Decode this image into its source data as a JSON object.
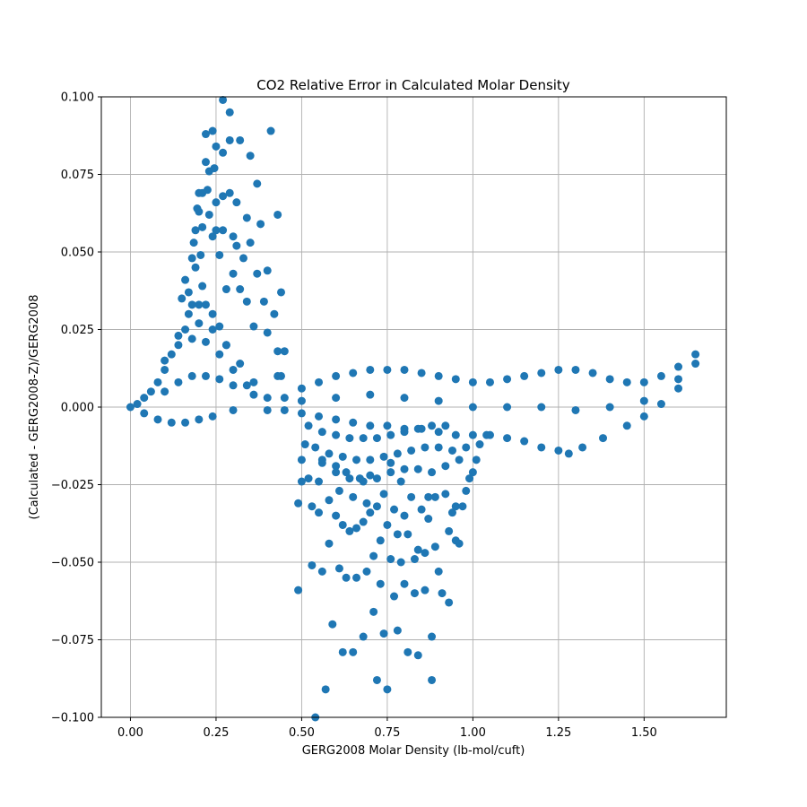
{
  "chart_data": {
    "type": "scatter",
    "title": "CO2 Relative Error in Calculated Molar Density",
    "xlabel": "GERG2008 Molar Density (lb-mol/cuft)",
    "ylabel": "(Calculated - GERG2008-Z)/GERG2008",
    "xlim": [
      -0.085,
      1.74
    ],
    "ylim": [
      -0.1,
      0.1
    ],
    "x_ticks": [
      0.0,
      0.25,
      0.5,
      0.75,
      1.0,
      1.25,
      1.5
    ],
    "x_tick_labels": [
      "0.00",
      "0.25",
      "0.50",
      "0.75",
      "1.00",
      "1.25",
      "1.50"
    ],
    "y_ticks": [
      -0.1,
      -0.075,
      -0.05,
      -0.025,
      0.0,
      0.025,
      0.05,
      0.075,
      0.1
    ],
    "y_tick_labels": [
      "−0.100",
      "−0.075",
      "−0.050",
      "−0.025",
      "0.000",
      "0.025",
      "0.050",
      "0.075",
      "0.100"
    ],
    "grid": true,
    "marker_color": "#1f77b4",
    "series": [
      {
        "points": [
          [
            0.0,
            0.0
          ],
          [
            0.02,
            0.001
          ],
          [
            0.04,
            0.003
          ],
          [
            0.06,
            0.005
          ],
          [
            0.08,
            0.008
          ],
          [
            0.1,
            0.012
          ],
          [
            0.12,
            0.017
          ],
          [
            0.14,
            0.023
          ],
          [
            0.04,
            -0.002
          ],
          [
            0.08,
            -0.004
          ],
          [
            0.12,
            -0.005
          ],
          [
            0.16,
            -0.005
          ],
          [
            0.2,
            -0.004
          ],
          [
            0.24,
            -0.003
          ],
          [
            0.3,
            -0.001
          ],
          [
            0.15,
            0.035
          ],
          [
            0.16,
            0.041
          ],
          [
            0.17,
            0.037
          ],
          [
            0.18,
            0.048
          ],
          [
            0.185,
            0.053
          ],
          [
            0.19,
            0.057
          ],
          [
            0.19,
            0.045
          ],
          [
            0.195,
            0.064
          ],
          [
            0.2,
            0.069
          ],
          [
            0.21,
            0.069
          ],
          [
            0.2,
            0.063
          ],
          [
            0.205,
            0.049
          ],
          [
            0.21,
            0.039
          ],
          [
            0.21,
            0.058
          ],
          [
            0.22,
            0.079
          ],
          [
            0.22,
            0.088
          ],
          [
            0.225,
            0.07
          ],
          [
            0.23,
            0.062
          ],
          [
            0.23,
            0.076
          ],
          [
            0.24,
            0.055
          ],
          [
            0.24,
            0.089
          ],
          [
            0.245,
            0.077
          ],
          [
            0.25,
            0.066
          ],
          [
            0.25,
            0.084
          ],
          [
            0.25,
            0.057
          ],
          [
            0.26,
            0.049
          ],
          [
            0.27,
            0.099
          ],
          [
            0.27,
            0.082
          ],
          [
            0.27,
            0.068
          ],
          [
            0.27,
            0.057
          ],
          [
            0.28,
            0.038
          ],
          [
            0.29,
            0.095
          ],
          [
            0.29,
            0.069
          ],
          [
            0.29,
            0.086
          ],
          [
            0.3,
            0.055
          ],
          [
            0.3,
            0.043
          ],
          [
            0.31,
            0.066
          ],
          [
            0.31,
            0.052
          ],
          [
            0.32,
            0.086
          ],
          [
            0.32,
            0.038
          ],
          [
            0.33,
            0.048
          ],
          [
            0.34,
            0.061
          ],
          [
            0.34,
            0.034
          ],
          [
            0.35,
            0.081
          ],
          [
            0.35,
            0.053
          ],
          [
            0.36,
            0.026
          ],
          [
            0.37,
            0.072
          ],
          [
            0.37,
            0.043
          ],
          [
            0.38,
            0.059
          ],
          [
            0.39,
            0.034
          ],
          [
            0.4,
            0.044
          ],
          [
            0.4,
            0.024
          ],
          [
            0.41,
            0.089
          ],
          [
            0.42,
            0.03
          ],
          [
            0.43,
            0.062
          ],
          [
            0.43,
            0.018
          ],
          [
            0.44,
            0.037
          ],
          [
            0.45,
            0.018
          ],
          [
            0.44,
            0.01
          ],
          [
            0.43,
            0.01
          ],
          [
            0.17,
            0.03
          ],
          [
            0.18,
            0.033
          ],
          [
            0.2,
            0.033
          ],
          [
            0.22,
            0.033
          ],
          [
            0.24,
            0.03
          ],
          [
            0.26,
            0.026
          ],
          [
            0.28,
            0.02
          ],
          [
            0.16,
            0.025
          ],
          [
            0.2,
            0.027
          ],
          [
            0.24,
            0.025
          ],
          [
            0.28,
            0.02
          ],
          [
            0.32,
            0.014
          ],
          [
            0.36,
            0.008
          ],
          [
            0.1,
            0.015
          ],
          [
            0.14,
            0.02
          ],
          [
            0.18,
            0.022
          ],
          [
            0.22,
            0.021
          ],
          [
            0.26,
            0.017
          ],
          [
            0.3,
            0.012
          ],
          [
            0.34,
            0.007
          ],
          [
            0.1,
            0.005
          ],
          [
            0.14,
            0.008
          ],
          [
            0.18,
            0.01
          ],
          [
            0.22,
            0.01
          ],
          [
            0.26,
            0.009
          ],
          [
            0.3,
            0.007
          ],
          [
            0.36,
            0.004
          ],
          [
            0.4,
            0.003
          ],
          [
            0.45,
            0.003
          ],
          [
            0.5,
            0.006
          ],
          [
            0.55,
            0.008
          ],
          [
            0.6,
            0.01
          ],
          [
            0.65,
            0.011
          ],
          [
            0.7,
            0.012
          ],
          [
            0.75,
            0.012
          ],
          [
            0.8,
            0.012
          ],
          [
            0.85,
            0.011
          ],
          [
            0.9,
            0.01
          ],
          [
            0.95,
            0.009
          ],
          [
            1.0,
            0.008
          ],
          [
            1.05,
            0.008
          ],
          [
            1.1,
            0.009
          ],
          [
            1.15,
            0.01
          ],
          [
            1.2,
            0.011
          ],
          [
            1.25,
            0.012
          ],
          [
            1.3,
            0.012
          ],
          [
            1.35,
            0.011
          ],
          [
            1.4,
            0.009
          ],
          [
            1.45,
            0.008
          ],
          [
            1.5,
            0.008
          ],
          [
            1.55,
            0.01
          ],
          [
            1.6,
            0.013
          ],
          [
            1.65,
            0.017
          ],
          [
            0.4,
            -0.001
          ],
          [
            0.45,
            -0.001
          ],
          [
            0.5,
            -0.002
          ],
          [
            0.55,
            -0.003
          ],
          [
            0.6,
            -0.004
          ],
          [
            0.65,
            -0.005
          ],
          [
            0.7,
            -0.006
          ],
          [
            0.75,
            -0.006
          ],
          [
            0.8,
            -0.007
          ],
          [
            0.85,
            -0.007
          ],
          [
            0.9,
            -0.008
          ],
          [
            0.95,
            -0.009
          ],
          [
            1.0,
            -0.009
          ],
          [
            1.05,
            -0.009
          ],
          [
            1.1,
            -0.01
          ],
          [
            1.15,
            -0.011
          ],
          [
            1.2,
            -0.013
          ],
          [
            1.25,
            -0.014
          ],
          [
            1.28,
            -0.015
          ],
          [
            1.32,
            -0.013
          ],
          [
            1.38,
            -0.01
          ],
          [
            1.45,
            -0.006
          ],
          [
            1.5,
            -0.003
          ],
          [
            1.55,
            0.001
          ],
          [
            1.6,
            0.006
          ],
          [
            1.65,
            0.014
          ],
          [
            0.5,
            0.002
          ],
          [
            0.6,
            0.003
          ],
          [
            0.7,
            0.004
          ],
          [
            0.8,
            0.003
          ],
          [
            0.9,
            0.002
          ],
          [
            1.0,
            0.0
          ],
          [
            1.1,
            0.0
          ],
          [
            1.2,
            0.0
          ],
          [
            1.3,
            -0.001
          ],
          [
            1.4,
            0.0
          ],
          [
            1.5,
            0.002
          ],
          [
            1.6,
            0.009
          ],
          [
            0.49,
            -0.031
          ],
          [
            0.49,
            -0.059
          ],
          [
            0.5,
            -0.024
          ],
          [
            0.5,
            -0.017
          ],
          [
            0.51,
            -0.012
          ],
          [
            0.52,
            -0.023
          ],
          [
            0.53,
            -0.032
          ],
          [
            0.53,
            -0.051
          ],
          [
            0.54,
            -0.1
          ],
          [
            0.55,
            -0.024
          ],
          [
            0.55,
            -0.034
          ],
          [
            0.56,
            -0.053
          ],
          [
            0.56,
            -0.017
          ],
          [
            0.57,
            -0.091
          ],
          [
            0.58,
            -0.03
          ],
          [
            0.58,
            -0.044
          ],
          [
            0.59,
            -0.07
          ],
          [
            0.6,
            -0.035
          ],
          [
            0.6,
            -0.019
          ],
          [
            0.61,
            -0.052
          ],
          [
            0.61,
            -0.027
          ],
          [
            0.62,
            -0.079
          ],
          [
            0.62,
            -0.038
          ],
          [
            0.63,
            -0.055
          ],
          [
            0.63,
            -0.021
          ],
          [
            0.64,
            -0.04
          ],
          [
            0.65,
            -0.079
          ],
          [
            0.65,
            -0.029
          ],
          [
            0.66,
            -0.055
          ],
          [
            0.66,
            -0.039
          ],
          [
            0.67,
            -0.023
          ],
          [
            0.68,
            -0.037
          ],
          [
            0.68,
            -0.074
          ],
          [
            0.69,
            -0.053
          ],
          [
            0.69,
            -0.031
          ],
          [
            0.7,
            -0.034
          ],
          [
            0.7,
            -0.022
          ],
          [
            0.71,
            -0.048
          ],
          [
            0.71,
            -0.066
          ],
          [
            0.72,
            -0.088
          ],
          [
            0.72,
            -0.032
          ],
          [
            0.73,
            -0.043
          ],
          [
            0.73,
            -0.057
          ],
          [
            0.74,
            -0.073
          ],
          [
            0.74,
            -0.028
          ],
          [
            0.75,
            -0.038
          ],
          [
            0.75,
            -0.091
          ],
          [
            0.76,
            -0.049
          ],
          [
            0.76,
            -0.018
          ],
          [
            0.77,
            -0.033
          ],
          [
            0.77,
            -0.061
          ],
          [
            0.78,
            -0.072
          ],
          [
            0.78,
            -0.041
          ],
          [
            0.79,
            -0.05
          ],
          [
            0.79,
            -0.024
          ],
          [
            0.8,
            -0.035
          ],
          [
            0.8,
            -0.057
          ],
          [
            0.81,
            -0.079
          ],
          [
            0.81,
            -0.041
          ],
          [
            0.82,
            -0.029
          ],
          [
            0.83,
            -0.06
          ],
          [
            0.83,
            -0.049
          ],
          [
            0.84,
            -0.08
          ],
          [
            0.84,
            -0.046
          ],
          [
            0.85,
            -0.033
          ],
          [
            0.86,
            -0.047
          ],
          [
            0.86,
            -0.059
          ],
          [
            0.87,
            -0.029
          ],
          [
            0.87,
            -0.036
          ],
          [
            0.88,
            -0.074
          ],
          [
            0.88,
            -0.088
          ],
          [
            0.89,
            -0.045
          ],
          [
            0.89,
            -0.029
          ],
          [
            0.9,
            -0.053
          ],
          [
            0.91,
            -0.06
          ],
          [
            0.92,
            -0.028
          ],
          [
            0.93,
            -0.04
          ],
          [
            0.93,
            -0.063
          ],
          [
            0.94,
            -0.034
          ],
          [
            0.95,
            -0.043
          ],
          [
            0.95,
            -0.032
          ],
          [
            0.96,
            -0.044
          ],
          [
            0.97,
            -0.032
          ],
          [
            0.98,
            -0.027
          ],
          [
            0.99,
            -0.023
          ],
          [
            1.0,
            -0.021
          ],
          [
            1.01,
            -0.017
          ],
          [
            1.02,
            -0.012
          ],
          [
            1.04,
            -0.009
          ],
          [
            0.52,
            -0.006
          ],
          [
            0.56,
            -0.008
          ],
          [
            0.6,
            -0.009
          ],
          [
            0.64,
            -0.01
          ],
          [
            0.68,
            -0.01
          ],
          [
            0.72,
            -0.01
          ],
          [
            0.76,
            -0.009
          ],
          [
            0.8,
            -0.008
          ],
          [
            0.84,
            -0.007
          ],
          [
            0.88,
            -0.006
          ],
          [
            0.92,
            -0.006
          ],
          [
            0.54,
            -0.013
          ],
          [
            0.58,
            -0.015
          ],
          [
            0.62,
            -0.016
          ],
          [
            0.66,
            -0.017
          ],
          [
            0.7,
            -0.017
          ],
          [
            0.74,
            -0.016
          ],
          [
            0.78,
            -0.015
          ],
          [
            0.82,
            -0.014
          ],
          [
            0.86,
            -0.013
          ],
          [
            0.9,
            -0.013
          ],
          [
            0.94,
            -0.014
          ],
          [
            0.98,
            -0.013
          ],
          [
            0.56,
            -0.018
          ],
          [
            0.6,
            -0.021
          ],
          [
            0.64,
            -0.023
          ],
          [
            0.68,
            -0.024
          ],
          [
            0.72,
            -0.023
          ],
          [
            0.76,
            -0.021
          ],
          [
            0.8,
            -0.02
          ],
          [
            0.84,
            -0.02
          ],
          [
            0.88,
            -0.021
          ],
          [
            0.92,
            -0.019
          ],
          [
            0.96,
            -0.017
          ]
        ]
      }
    ]
  }
}
